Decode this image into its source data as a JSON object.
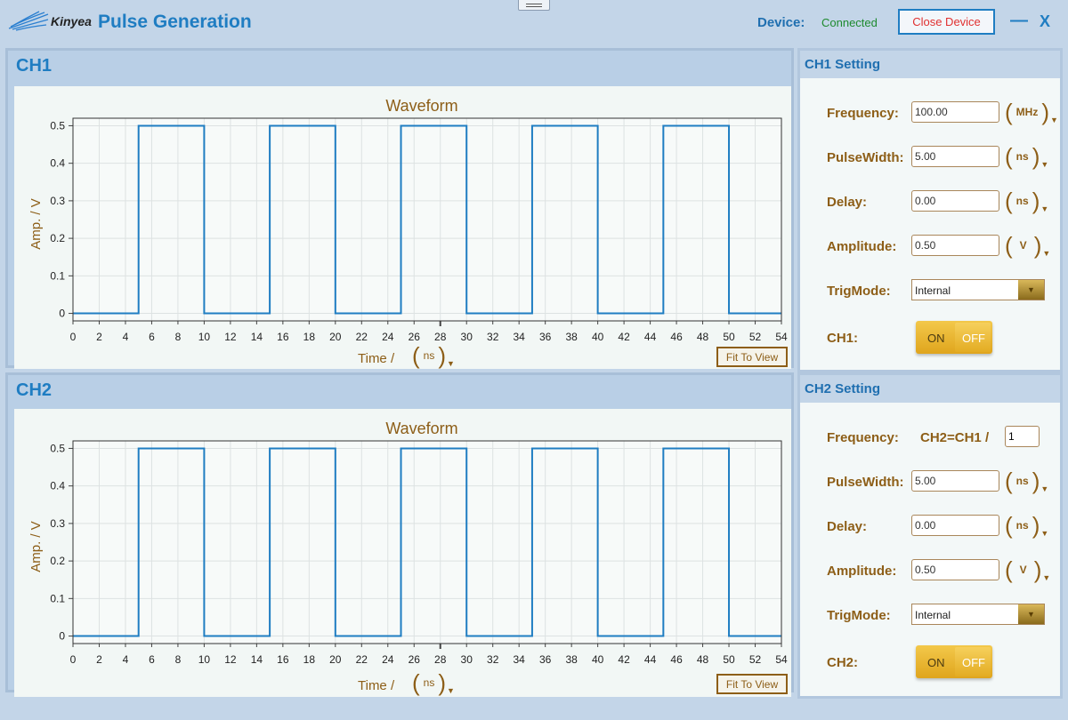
{
  "header": {
    "brand": "Kinyea",
    "title": "Pulse Generation",
    "device_label": "Device:",
    "device_status": "Connected",
    "close_device": "Close Device",
    "minimize": "—",
    "close": "X"
  },
  "channels": [
    {
      "title": "CH1",
      "plot_title": "Waveform",
      "ylabel": "Amp. / V",
      "xlabel": "Time /",
      "xunit": "ns",
      "fit": "Fit To View"
    },
    {
      "title": "CH2",
      "plot_title": "Waveform",
      "ylabel": "Amp. / V",
      "xlabel": "Time /",
      "xunit": "ns",
      "fit": "Fit To View"
    }
  ],
  "ch1_setting": {
    "title": "CH1 Setting",
    "frequency_label": "Frequency:",
    "frequency": "100.00",
    "frequency_unit": "MHz",
    "pulsewidth_label": "PulseWidth:",
    "pulsewidth": "5.00",
    "pulsewidth_unit": "ns",
    "delay_label": "Delay:",
    "delay": "0.00",
    "delay_unit": "ns",
    "amplitude_label": "Amplitude:",
    "amplitude": "0.50",
    "amplitude_unit": "V",
    "trigmode_label": "TrigMode:",
    "trigmode": "Internal",
    "enable_label": "CH1:",
    "on": "ON",
    "off": "OFF"
  },
  "ch2_setting": {
    "title": "CH2 Setting",
    "frequency_label": "Frequency:",
    "ratio_label": "CH2=CH1 /",
    "ratio": "1",
    "pulsewidth_label": "PulseWidth:",
    "pulsewidth": "5.00",
    "pulsewidth_unit": "ns",
    "delay_label": "Delay:",
    "delay": "0.00",
    "delay_unit": "ns",
    "amplitude_label": "Amplitude:",
    "amplitude": "0.50",
    "amplitude_unit": "V",
    "trigmode_label": "TrigMode:",
    "trigmode": "Internal",
    "enable_label": "CH2:",
    "on": "ON",
    "off": "OFF"
  },
  "colors": {
    "accent": "#1f7dc2",
    "label": "#8d5e17",
    "waveform": "#1f7dc2",
    "connected": "#1d8a2e",
    "danger": "#e03030"
  },
  "chart_data": [
    {
      "type": "line",
      "title": "Waveform",
      "xlabel": "Time / ns",
      "ylabel": "Amp. / V",
      "xlim": [
        0,
        54
      ],
      "ylim": [
        -0.02,
        0.52
      ],
      "xticks": [
        0,
        2,
        4,
        6,
        8,
        10,
        12,
        14,
        16,
        18,
        20,
        22,
        24,
        26,
        28,
        30,
        32,
        34,
        36,
        38,
        40,
        42,
        44,
        46,
        48,
        50,
        52,
        54
      ],
      "xtick_labels": [
        "0",
        "2",
        "4",
        "6",
        "8",
        "10",
        "12",
        "14",
        "16",
        "18",
        "20",
        "22",
        "24",
        "26",
        "28",
        "30",
        "32",
        "34",
        "36",
        "38",
        "40",
        "42",
        "44",
        "46",
        "48",
        "50",
        "52",
        "54"
      ],
      "yticks": [
        0,
        0.1,
        0.2,
        0.3,
        0.4,
        0.5
      ],
      "ytick_labels": [
        "0",
        "0.1",
        "0.2",
        "0.3",
        "0.4",
        "0.5"
      ],
      "grid": true,
      "series": [
        {
          "x": [
            0,
            5,
            5,
            10,
            10,
            15,
            15,
            20,
            20,
            25,
            25,
            30,
            30,
            35,
            35,
            40,
            40,
            45,
            45,
            50,
            50,
            54
          ],
          "y": [
            0,
            0,
            0.5,
            0.5,
            0,
            0,
            0.5,
            0.5,
            0,
            0,
            0.5,
            0.5,
            0,
            0,
            0.5,
            0.5,
            0,
            0,
            0.5,
            0.5,
            0,
            0
          ]
        }
      ]
    },
    {
      "type": "line",
      "title": "Waveform",
      "xlabel": "Time / ns",
      "ylabel": "Amp. / V",
      "xlim": [
        0,
        54
      ],
      "ylim": [
        -0.02,
        0.52
      ],
      "xticks": [
        0,
        2,
        4,
        6,
        8,
        10,
        12,
        14,
        16,
        18,
        20,
        22,
        24,
        26,
        28,
        30,
        32,
        34,
        36,
        38,
        40,
        42,
        44,
        46,
        48,
        50,
        52,
        54
      ],
      "xtick_labels": [
        "0",
        "2",
        "4",
        "6",
        "8",
        "10",
        "12",
        "14",
        "16",
        "18",
        "20",
        "22",
        "24",
        "26",
        "28",
        "30",
        "32",
        "34",
        "36",
        "38",
        "40",
        "42",
        "44",
        "46",
        "48",
        "50",
        "52",
        "54"
      ],
      "yticks": [
        0,
        0.1,
        0.2,
        0.3,
        0.4,
        0.5
      ],
      "ytick_labels": [
        "0",
        "0.1",
        "0.2",
        "0.3",
        "0.4",
        "0.5"
      ],
      "grid": true,
      "series": [
        {
          "x": [
            0,
            5,
            5,
            10,
            10,
            15,
            15,
            20,
            20,
            25,
            25,
            30,
            30,
            35,
            35,
            40,
            40,
            45,
            45,
            50,
            50,
            54
          ],
          "y": [
            0,
            0,
            0.5,
            0.5,
            0,
            0,
            0.5,
            0.5,
            0,
            0,
            0.5,
            0.5,
            0,
            0,
            0.5,
            0.5,
            0,
            0,
            0.5,
            0.5,
            0,
            0
          ]
        }
      ]
    }
  ]
}
